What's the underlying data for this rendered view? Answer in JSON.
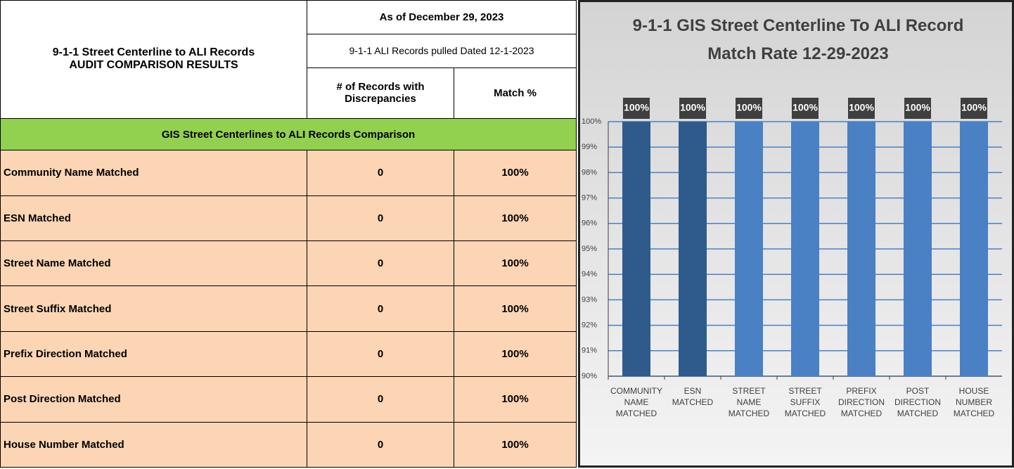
{
  "table": {
    "title": [
      "9-1-1 Street Centerline to ALI Records",
      "AUDIT COMPARISON RESULTS"
    ],
    "as_of": "As of December 29, 2023",
    "pulled": "9-1-1 ALI Records pulled Dated 12-1-2023",
    "columns": [
      "# of Records with Discrepancies",
      "Match %"
    ],
    "section": "GIS Street Centerlines to ALI Records Comparison",
    "rows": [
      [
        "Community Name Matched",
        0,
        "100%"
      ],
      [
        "ESN Matched",
        0,
        "100%"
      ],
      [
        "Street Name Matched",
        0,
        "100%"
      ],
      [
        "Street Suffix Matched",
        0,
        "100%"
      ],
      [
        "Prefix Direction Matched",
        0,
        "100%"
      ],
      [
        "Post Direction Matched",
        0,
        "100%"
      ],
      [
        "House Number Matched",
        0,
        "100%"
      ]
    ]
  },
  "chart_data": {
    "type": "bar",
    "title": "9-1-1 GIS Street Centerline To ALI Record Match Rate 12-29-2023",
    "categories": [
      "COMMUNITY NAME MATCHED",
      "ESN MATCHED",
      "STREET NAME MATCHED",
      "STREET SUFFIX MATCHED",
      "PREFIX DIRECTION MATCHED",
      "POST DIRECTION MATCHED",
      "HOUSE NUMBER MATCHED"
    ],
    "values": [
      100,
      100,
      100,
      100,
      100,
      100,
      100
    ],
    "value_labels": [
      "100%",
      "100%",
      "100%",
      "100%",
      "100%",
      "100%",
      "100%"
    ],
    "colors": [
      "#2f5b8c",
      "#2f5b8c",
      "#4a80c4",
      "#4a80c4",
      "#4a80c4",
      "#4a80c4",
      "#4a80c4"
    ],
    "ylim": [
      90,
      100
    ],
    "yticks": [
      {
        "value": 90,
        "label": "90%"
      },
      {
        "value": 91,
        "label": "91%"
      },
      {
        "value": 92,
        "label": "92%"
      },
      {
        "value": 93,
        "label": "93%"
      },
      {
        "value": 94,
        "label": "94%"
      },
      {
        "value": 95,
        "label": "95%"
      },
      {
        "value": 96,
        "label": "96%"
      },
      {
        "value": 97,
        "label": "97%"
      },
      {
        "value": 98,
        "label": "98%"
      },
      {
        "value": 99,
        "label": "99%"
      },
      {
        "value": 100,
        "label": "100%"
      }
    ],
    "grid": true
  }
}
